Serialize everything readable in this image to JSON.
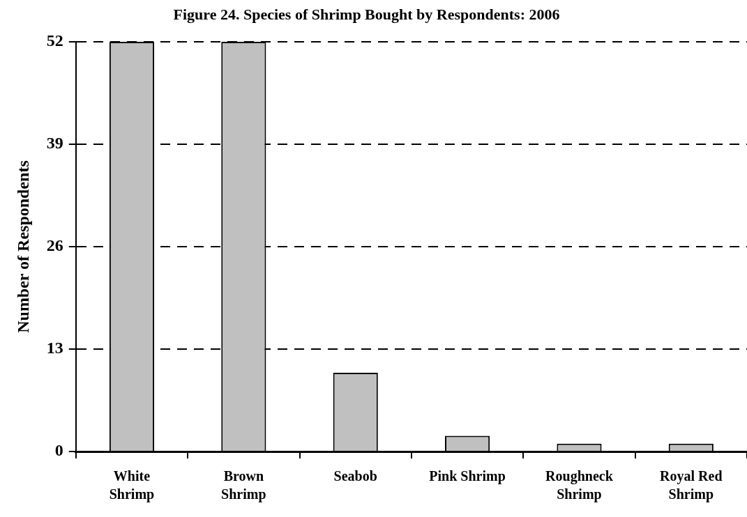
{
  "chart_data": {
    "type": "bar",
    "title": "Figure 24. Species of Shrimp Bought by Respondents: 2006",
    "ylabel": "Number of Respondents",
    "categories": [
      "White\nShrimp",
      "Brown\nShrimp",
      "Seabob",
      "Pink Shrimp",
      "Roughneck\nShrimp",
      "Royal Red\nShrimp"
    ],
    "values": [
      52,
      52,
      10,
      2,
      1,
      1
    ],
    "color": "#c0c0c0",
    "ylim": [
      0,
      52
    ],
    "yticks": [
      0,
      13,
      26,
      39,
      52
    ],
    "grid": "y",
    "legend": false
  }
}
